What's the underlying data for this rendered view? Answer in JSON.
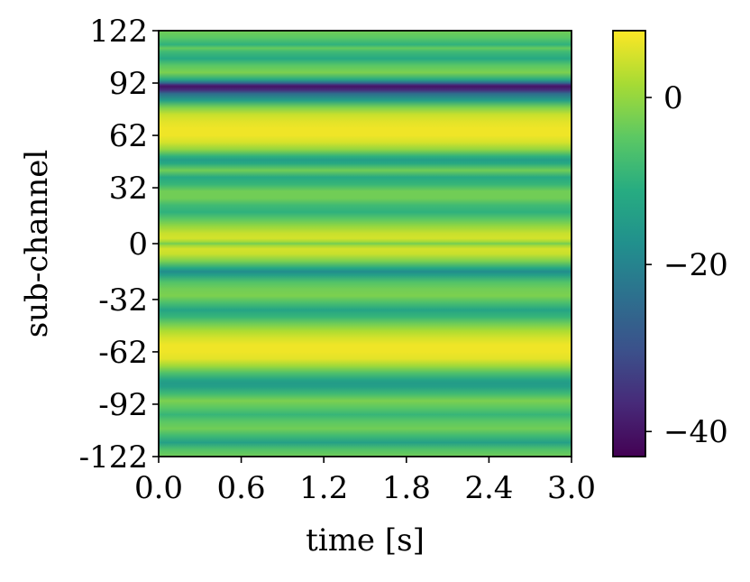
{
  "chart_data": {
    "type": "heatmap",
    "title": "",
    "xlabel": "time [s]",
    "ylabel": "sub-channel",
    "xlim": [
      0.0,
      3.0
    ],
    "ylim": [
      -122,
      122
    ],
    "x_ticks": [
      0.0,
      0.6,
      1.2,
      1.8,
      2.4,
      3.0
    ],
    "x_tick_labels": [
      "0.0",
      "0.6",
      "1.2",
      "1.8",
      "2.4",
      "3.0"
    ],
    "y_ticks": [
      122,
      92,
      62,
      32,
      0,
      -32,
      -62,
      -92,
      -122
    ],
    "y_tick_labels": [
      "122",
      "92",
      "62",
      "32",
      "0",
      "-32",
      "-62",
      "-92",
      "-122"
    ],
    "colormap": "viridis",
    "colorbar": {
      "range": [
        -43,
        8
      ],
      "ticks": [
        0,
        -20,
        -40
      ],
      "tick_labels": [
        "0",
        "−20",
        "−40"
      ]
    },
    "profile_by_subchannel": {
      "subchannel": [
        -122,
        -118,
        -114,
        -110,
        -106,
        -102,
        -98,
        -94,
        -90,
        -86,
        -82,
        -80,
        -78,
        -74,
        -70,
        -66,
        -62,
        -58,
        -54,
        -50,
        -46,
        -42,
        -38,
        -34,
        -30,
        -26,
        -22,
        -18,
        -16,
        -14,
        -10,
        -6,
        -3,
        -1,
        0,
        1,
        3,
        6,
        10,
        14,
        18,
        22,
        26,
        30,
        34,
        38,
        42,
        46,
        48,
        50,
        54,
        58,
        62,
        66,
        70,
        74,
        78,
        82,
        86,
        88,
        89,
        90,
        91,
        92,
        94,
        98,
        102,
        106,
        110,
        112,
        114,
        118,
        122
      ],
      "value_db": [
        -3,
        -6,
        -14,
        -8,
        -3,
        -5,
        -9,
        -5,
        -2,
        -8,
        -14,
        -15,
        -13,
        -6,
        1,
        6,
        7,
        7,
        5,
        2,
        -3,
        -9,
        -13,
        -7,
        -2,
        -3,
        -6,
        -14,
        -18,
        -12,
        -2,
        4,
        5,
        1,
        -3,
        1,
        5,
        4,
        0,
        -5,
        -10,
        -8,
        -3,
        -3,
        -9,
        -12,
        -3,
        -12,
        -14,
        -10,
        0,
        5,
        7,
        7,
        6,
        4,
        -2,
        -14,
        -25,
        -36,
        -38,
        -40,
        -36,
        -26,
        -12,
        -2,
        -5,
        -12,
        -8,
        -4,
        -10,
        -5,
        -3
      ]
    }
  }
}
